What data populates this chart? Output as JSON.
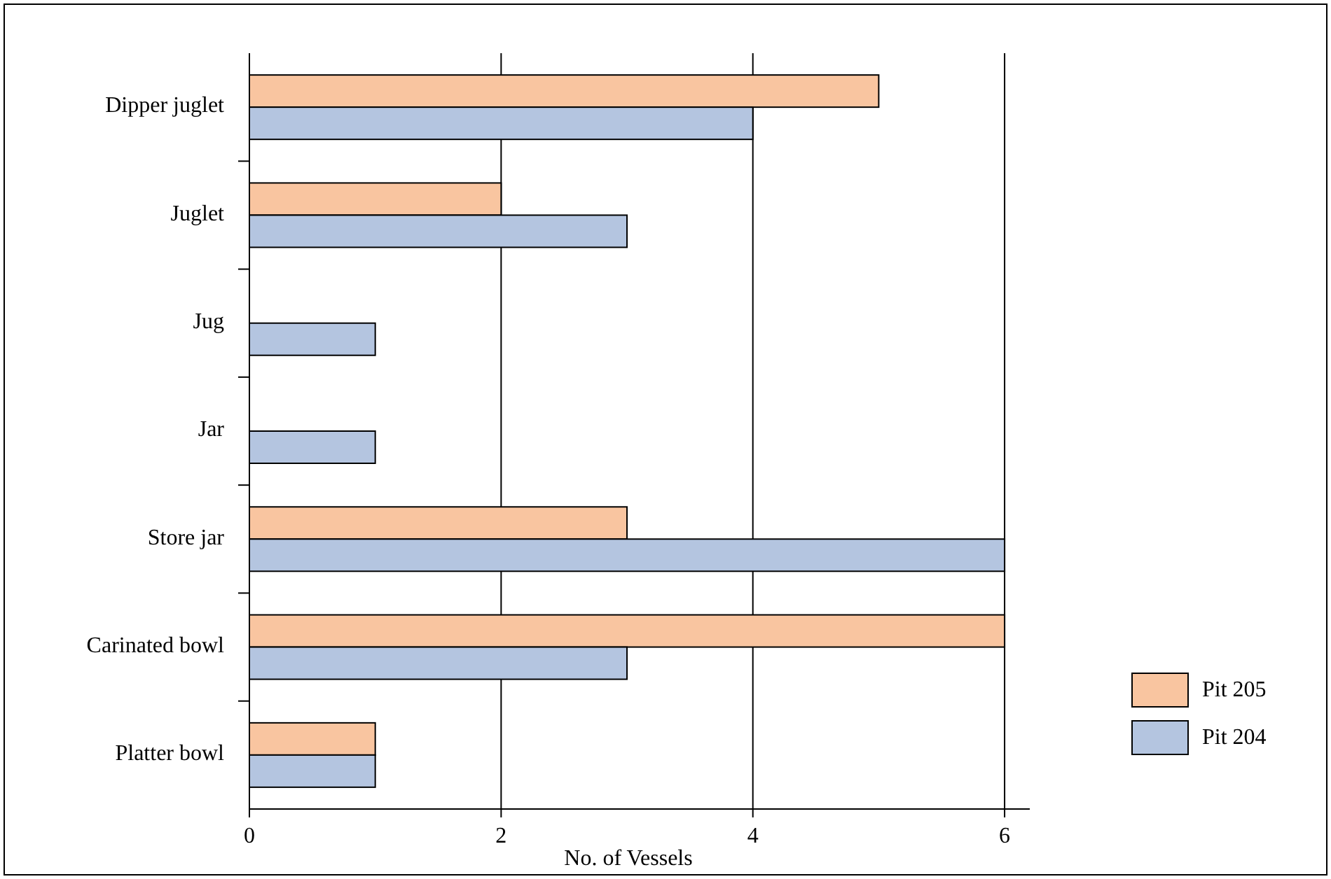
{
  "chart_data": {
    "type": "bar",
    "orientation": "horizontal",
    "xlabel": "No. of  Vessels",
    "categories": [
      "Dipper juglet",
      "Juglet",
      "Jug",
      "Jar",
      "Store jar",
      "Carinated bowl",
      "Platter bowl"
    ],
    "series": [
      {
        "name": "Pit 205",
        "color": "#f9c5a0",
        "values": [
          5,
          2,
          null,
          null,
          3,
          6,
          1
        ]
      },
      {
        "name": "Pit 204",
        "color": "#b4c5e0",
        "values": [
          4,
          3,
          1,
          1,
          6,
          3,
          1
        ]
      }
    ],
    "xlim": [
      0,
      6.2
    ],
    "xticks": [
      0,
      2,
      4,
      6
    ],
    "grid": "x",
    "legend": "right"
  }
}
